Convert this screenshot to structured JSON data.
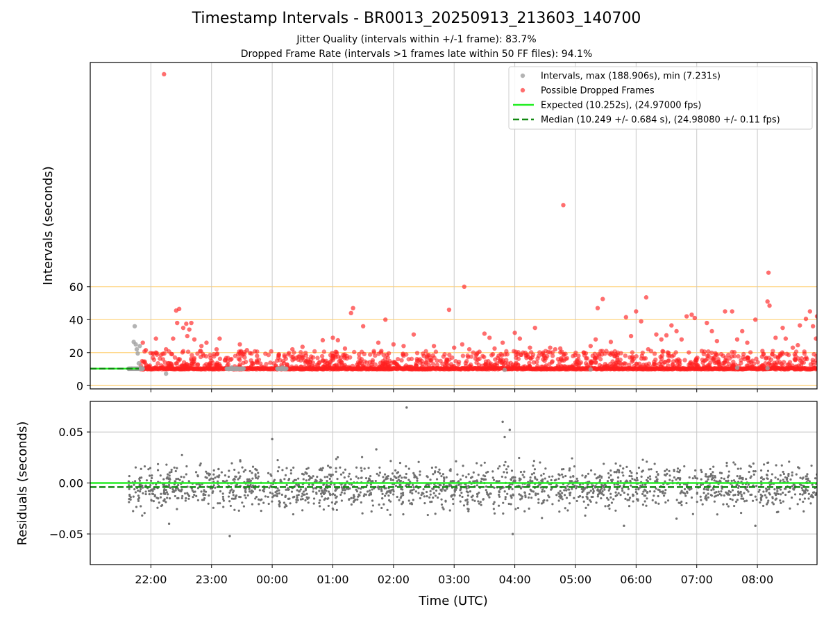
{
  "header": {
    "title": "Timestamp Intervals - BR0013_20250913_213603_140700",
    "subtitle_jitter": "Jitter Quality (intervals within +/-1 frame): 83.7%",
    "subtitle_dropped": "Dropped Frame Rate (intervals >1 frames late within 50 FF files): 94.1%"
  },
  "colors": {
    "intervals": "#a0a0a0",
    "dropped": "#ff2020",
    "expected": "#22ee22",
    "median": "#118811",
    "hline": "#ffd27a",
    "grid": "#c8c8c8",
    "residuals": "#707070"
  },
  "chart_data": [
    {
      "type": "scatter",
      "panel": "intervals",
      "ylabel": "Intervals (seconds)",
      "yticks": [
        0,
        20,
        40,
        60
      ],
      "ylim": [
        -2,
        196
      ],
      "horizontal_lines": [
        0,
        20,
        40,
        60
      ],
      "grid": "vertical",
      "legend_position": "top-right",
      "legend": [
        {
          "key": "intervals",
          "label": "Intervals, max (188.906s), min (7.231s)",
          "marker": "dot"
        },
        {
          "key": "dropped",
          "label": "Possible Dropped Frames",
          "marker": "dot"
        },
        {
          "key": "expected",
          "label": "Expected (10.252s), (24.97000 fps)",
          "marker": "line"
        },
        {
          "key": "median",
          "label": "Median (10.249 +/- 0.684 s), (24.98080 +/- 0.11 fps)",
          "marker": "dashed"
        }
      ],
      "expected_value": 10.252,
      "median_value": 10.249,
      "baseline_value": 10.25,
      "series": [
        {
          "name": "Intervals, max (188.906s), min (7.231s)",
          "points": [
            [
              "21:38",
              10.2
            ],
            [
              "21:41",
              10.3
            ],
            [
              "21:43",
              26.5
            ],
            [
              "21:44",
              36
            ],
            [
              "21:45",
              25
            ],
            [
              "21:46",
              22
            ],
            [
              "21:47",
              19.5
            ],
            [
              "21:48",
              13.5
            ],
            [
              "21:49",
              24
            ],
            [
              "21:50",
              11
            ],
            [
              "22:15",
              7.231
            ],
            [
              "23:20",
              11
            ],
            [
              "23:25",
              10.5
            ],
            [
              "00:10",
              11
            ],
            [
              "03:50",
              9.5
            ],
            [
              "05:15",
              9.8
            ],
            [
              "07:40",
              10.8
            ],
            [
              "08:10",
              10.5
            ]
          ]
        },
        {
          "name": "Possible Dropped Frames",
          "points": [
            [
              "22:13",
              188.906
            ],
            [
              "04:48",
              109.5
            ],
            [
              "03:10",
              60
            ],
            [
              "08:11",
              68.5
            ],
            [
              "22:25",
              45.5
            ],
            [
              "22:28",
              46.5
            ],
            [
              "22:26",
              38
            ],
            [
              "22:32",
              35
            ],
            [
              "22:35",
              37.5
            ],
            [
              "22:38",
              34
            ],
            [
              "22:40",
              38
            ],
            [
              "22:22",
              28.5
            ],
            [
              "22:36",
              30
            ],
            [
              "22:43",
              28
            ],
            [
              "22:50",
              24
            ],
            [
              "22:55",
              26
            ],
            [
              "23:05",
              22
            ],
            [
              "23:08",
              28.5
            ],
            [
              "21:52",
              26
            ],
            [
              "21:55",
              21.5
            ],
            [
              "22:05",
              28.5
            ],
            [
              "22:15",
              22
            ],
            [
              "23:28",
              25
            ],
            [
              "23:35",
              21.5
            ],
            [
              "23:45",
              18
            ],
            [
              "00:20",
              22
            ],
            [
              "00:30",
              23.5
            ],
            [
              "00:35",
              14
            ],
            [
              "00:50",
              27.5
            ],
            [
              "01:00",
              29
            ],
            [
              "01:05",
              27.5
            ],
            [
              "01:12",
              22.5
            ],
            [
              "01:18",
              44
            ],
            [
              "01:20",
              47
            ],
            [
              "01:30",
              36
            ],
            [
              "01:45",
              26
            ],
            [
              "01:48",
              21
            ],
            [
              "01:52",
              40
            ],
            [
              "02:00",
              25
            ],
            [
              "02:10",
              24
            ],
            [
              "02:20",
              31
            ],
            [
              "02:30",
              18
            ],
            [
              "02:40",
              24
            ],
            [
              "02:55",
              46
            ],
            [
              "03:00",
              23
            ],
            [
              "03:08",
              25
            ],
            [
              "03:15",
              22
            ],
            [
              "03:25",
              20.5
            ],
            [
              "03:30",
              31.5
            ],
            [
              "03:35",
              29
            ],
            [
              "03:40",
              22.5
            ],
            [
              "03:48",
              26
            ],
            [
              "04:00",
              32
            ],
            [
              "04:05",
              28.5
            ],
            [
              "04:15",
              23
            ],
            [
              "04:20",
              35
            ],
            [
              "04:28",
              20
            ],
            [
              "04:35",
              23
            ],
            [
              "04:40",
              22
            ],
            [
              "04:45",
              22.5
            ],
            [
              "05:00",
              14
            ],
            [
              "05:15",
              24
            ],
            [
              "05:20",
              28
            ],
            [
              "05:22",
              47
            ],
            [
              "05:27",
              52.5
            ],
            [
              "05:35",
              26.5
            ],
            [
              "05:40",
              19
            ],
            [
              "05:50",
              41.5
            ],
            [
              "05:55",
              30
            ],
            [
              "06:00",
              45
            ],
            [
              "06:05",
              39
            ],
            [
              "06:10",
              53.5
            ],
            [
              "06:12",
              22
            ],
            [
              "06:20",
              31
            ],
            [
              "06:25",
              28
            ],
            [
              "06:30",
              30.5
            ],
            [
              "06:35",
              36.5
            ],
            [
              "06:40",
              33
            ],
            [
              "06:45",
              28
            ],
            [
              "06:50",
              42
            ],
            [
              "06:55",
              43
            ],
            [
              "06:58",
              41
            ],
            [
              "07:05",
              21
            ],
            [
              "07:10",
              38
            ],
            [
              "07:15",
              33
            ],
            [
              "07:20",
              27
            ],
            [
              "07:28",
              45
            ],
            [
              "07:35",
              45
            ],
            [
              "07:40",
              28
            ],
            [
              "07:45",
              33
            ],
            [
              "07:50",
              26
            ],
            [
              "07:58",
              40
            ],
            [
              "08:05",
              21
            ],
            [
              "08:10",
              51
            ],
            [
              "08:12",
              48.5
            ],
            [
              "08:18",
              29
            ],
            [
              "08:25",
              35
            ],
            [
              "08:28",
              28.5
            ],
            [
              "08:35",
              23
            ],
            [
              "08:40",
              24.5
            ],
            [
              "08:42",
              36.5
            ],
            [
              "08:48",
              40.5
            ],
            [
              "08:52",
              45
            ],
            [
              "08:55",
              36
            ],
            [
              "08:58",
              28.5
            ],
            [
              "08:59",
              42
            ]
          ]
        }
      ],
      "dense_band": {
        "series": "Possible Dropped Frames",
        "x_start": "21:50",
        "x_end": "08:59",
        "value": 10.25,
        "upper_scatter_max": 20
      }
    },
    {
      "type": "scatter",
      "panel": "residuals",
      "xlabel": "Time (UTC)",
      "ylabel": "Residuals (seconds)",
      "x_ticks": [
        "22:00",
        "23:00",
        "00:00",
        "01:00",
        "02:00",
        "03:00",
        "04:00",
        "05:00",
        "06:00",
        "07:00",
        "08:00"
      ],
      "x_range": [
        "21:00",
        "08:59"
      ],
      "y_ticks": [
        0.05,
        0.0,
        -0.05
      ],
      "y_tick_labels": [
        "0.05",
        "0.00",
        "−0.05"
      ],
      "ylim": [
        -0.08,
        0.08
      ],
      "grid": "both",
      "expected_value": 0.0,
      "median_value": -0.004,
      "series": [
        {
          "name": "",
          "points": [
            [
              "02:13",
              0.074
            ],
            [
              "03:48",
              0.06
            ],
            [
              "03:50",
              0.045
            ],
            [
              "03:55",
              0.052
            ],
            [
              "00:00",
              0.043
            ],
            [
              "01:43",
              0.033
            ],
            [
              "23:18",
              -0.052
            ],
            [
              "03:58",
              -0.05
            ],
            [
              "07:58",
              -0.042
            ],
            [
              "05:48",
              -0.042
            ],
            [
              "22:18",
              -0.04
            ],
            [
              "06:40",
              -0.035
            ]
          ]
        }
      ],
      "dense_cloud": {
        "x_start": "21:38",
        "x_end": "08:59",
        "center": -0.004,
        "spread": 0.016,
        "count": 1900
      }
    }
  ]
}
